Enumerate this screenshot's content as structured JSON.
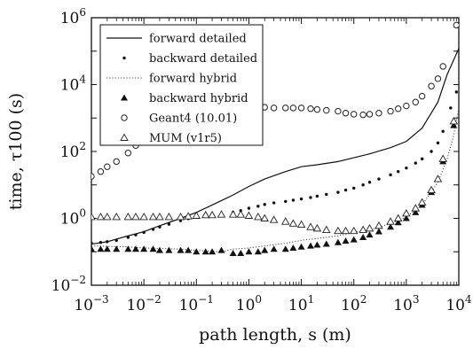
{
  "chart_data": {
    "type": "line",
    "title": "",
    "xlabel": "path length, s (m)",
    "ylabel": "time, τ100 (s)",
    "xscale": "log",
    "yscale": "log",
    "xlim": [
      0.001,
      10000
    ],
    "ylim": [
      0.01,
      1000000
    ],
    "x_ticks": [
      {
        "value": 0.001,
        "base": "10",
        "exp": "−3"
      },
      {
        "value": 0.01,
        "base": "10",
        "exp": "−2"
      },
      {
        "value": 0.1,
        "base": "10",
        "exp": "−1"
      },
      {
        "value": 1,
        "base": "10",
        "exp": "0"
      },
      {
        "value": 10,
        "base": "10",
        "exp": "1"
      },
      {
        "value": 100,
        "base": "10",
        "exp": "2"
      },
      {
        "value": 1000,
        "base": "10",
        "exp": "3"
      },
      {
        "value": 10000,
        "base": "10",
        "exp": "4"
      }
    ],
    "y_ticks": [
      {
        "value": 0.01,
        "base": "10",
        "exp": "−2"
      },
      {
        "value": 1,
        "base": "10",
        "exp": "0"
      },
      {
        "value": 100,
        "base": "10",
        "exp": "2"
      },
      {
        "value": 10000,
        "base": "10",
        "exp": "4"
      },
      {
        "value": 1000000,
        "base": "10",
        "exp": "6"
      }
    ],
    "grid": false,
    "legend_position": "top-left",
    "series": [
      {
        "name": "forward detailed",
        "style": "solid-line",
        "points": [
          [
            0.001,
            0.17
          ],
          [
            0.002,
            0.2
          ],
          [
            0.005,
            0.3
          ],
          [
            0.01,
            0.4
          ],
          [
            0.02,
            0.6
          ],
          [
            0.05,
            1.0
          ],
          [
            0.1,
            1.5
          ],
          [
            0.2,
            2.5
          ],
          [
            0.5,
            5
          ],
          [
            1,
            9
          ],
          [
            2,
            15
          ],
          [
            5,
            25
          ],
          [
            10,
            35
          ],
          [
            20,
            40
          ],
          [
            50,
            50
          ],
          [
            100,
            65
          ],
          [
            200,
            85
          ],
          [
            500,
            130
          ],
          [
            1000,
            200
          ],
          [
            2000,
            500
          ],
          [
            4000,
            3000
          ],
          [
            6000,
            20000
          ],
          [
            10000,
            120000
          ]
        ]
      },
      {
        "name": "backward detailed",
        "style": "dot",
        "points": [
          [
            0.001,
            0.18
          ],
          [
            0.0015,
            0.19
          ],
          [
            0.002,
            0.2
          ],
          [
            0.003,
            0.22
          ],
          [
            0.005,
            0.27
          ],
          [
            0.007,
            0.32
          ],
          [
            0.01,
            0.38
          ],
          [
            0.015,
            0.47
          ],
          [
            0.02,
            0.55
          ],
          [
            0.03,
            0.67
          ],
          [
            0.05,
            0.85
          ],
          [
            0.07,
            0.98
          ],
          [
            0.1,
            1.1
          ],
          [
            0.15,
            1.2
          ],
          [
            0.2,
            1.3
          ],
          [
            0.3,
            1.35
          ],
          [
            0.5,
            1.5
          ],
          [
            0.7,
            1.7
          ],
          [
            1,
            2.0
          ],
          [
            1.5,
            2.3
          ],
          [
            2,
            2.6
          ],
          [
            3,
            2.9
          ],
          [
            5,
            3.2
          ],
          [
            7,
            3.5
          ],
          [
            10,
            3.8
          ],
          [
            15,
            4.2
          ],
          [
            20,
            4.6
          ],
          [
            30,
            5.2
          ],
          [
            50,
            6
          ],
          [
            70,
            7
          ],
          [
            100,
            8
          ],
          [
            150,
            10
          ],
          [
            200,
            12
          ],
          [
            300,
            15
          ],
          [
            500,
            20
          ],
          [
            700,
            25
          ],
          [
            1000,
            32
          ],
          [
            1500,
            45
          ],
          [
            2000,
            60
          ],
          [
            3000,
            100
          ],
          [
            4000,
            180
          ],
          [
            5000,
            400
          ],
          [
            7000,
            2000
          ],
          [
            9000,
            6000
          ]
        ]
      },
      {
        "name": "forward hybrid",
        "style": "dotted-line",
        "points": [
          [
            0.001,
            0.15
          ],
          [
            0.005,
            0.14
          ],
          [
            0.01,
            0.13
          ],
          [
            0.05,
            0.12
          ],
          [
            0.1,
            0.11
          ],
          [
            0.3,
            0.1
          ],
          [
            0.5,
            0.12
          ],
          [
            1,
            0.13
          ],
          [
            2,
            0.15
          ],
          [
            5,
            0.18
          ],
          [
            10,
            0.22
          ],
          [
            20,
            0.25
          ],
          [
            50,
            0.3
          ],
          [
            100,
            0.38
          ],
          [
            200,
            0.45
          ],
          [
            500,
            0.7
          ],
          [
            1000,
            1.1
          ],
          [
            2000,
            2.5
          ],
          [
            4000,
            12
          ],
          [
            6000,
            60
          ],
          [
            8000,
            300
          ],
          [
            10000,
            2000
          ]
        ]
      },
      {
        "name": "backward hybrid",
        "style": "filled-triangle",
        "points": [
          [
            0.001,
            0.12
          ],
          [
            0.0015,
            0.12
          ],
          [
            0.002,
            0.12
          ],
          [
            0.003,
            0.12
          ],
          [
            0.005,
            0.12
          ],
          [
            0.007,
            0.12
          ],
          [
            0.01,
            0.12
          ],
          [
            0.015,
            0.12
          ],
          [
            0.02,
            0.11
          ],
          [
            0.03,
            0.11
          ],
          [
            0.05,
            0.11
          ],
          [
            0.07,
            0.11
          ],
          [
            0.1,
            0.1
          ],
          [
            0.15,
            0.1
          ],
          [
            0.2,
            0.1
          ],
          [
            0.3,
            0.11
          ],
          [
            0.5,
            0.09
          ],
          [
            0.7,
            0.09
          ],
          [
            1,
            0.1
          ],
          [
            1.5,
            0.1
          ],
          [
            2,
            0.11
          ],
          [
            3,
            0.12
          ],
          [
            5,
            0.12
          ],
          [
            7,
            0.13
          ],
          [
            10,
            0.14
          ],
          [
            15,
            0.15
          ],
          [
            20,
            0.16
          ],
          [
            30,
            0.17
          ],
          [
            50,
            0.19
          ],
          [
            70,
            0.21
          ],
          [
            100,
            0.23
          ],
          [
            150,
            0.27
          ],
          [
            200,
            0.32
          ],
          [
            300,
            0.4
          ],
          [
            500,
            0.55
          ],
          [
            700,
            0.75
          ],
          [
            1000,
            1.0
          ],
          [
            1500,
            1.5
          ],
          [
            2000,
            2.5
          ],
          [
            3000,
            6
          ],
          [
            4000,
            15
          ],
          [
            5000,
            50
          ],
          [
            8000,
            600
          ]
        ]
      },
      {
        "name": "Geant4 (10.01)",
        "style": "open-circle",
        "points": [
          [
            0.001,
            18
          ],
          [
            0.0015,
            25
          ],
          [
            0.002,
            35
          ],
          [
            0.003,
            50
          ],
          [
            0.005,
            90
          ],
          [
            0.007,
            150
          ],
          [
            0.01,
            250
          ],
          [
            0.015,
            380
          ],
          [
            0.02,
            520
          ],
          [
            0.03,
            700
          ],
          [
            0.05,
            900
          ],
          [
            0.07,
            1100
          ],
          [
            0.1,
            1300
          ],
          [
            0.15,
            1500
          ],
          [
            0.2,
            1700
          ],
          [
            0.3,
            1800
          ],
          [
            0.5,
            2000
          ],
          [
            0.7,
            2100
          ],
          [
            1,
            2200
          ],
          [
            1.5,
            2200
          ],
          [
            2,
            2100
          ],
          [
            3,
            2000
          ],
          [
            5,
            2000
          ],
          [
            7,
            2000
          ],
          [
            10,
            2000
          ],
          [
            15,
            1900
          ],
          [
            20,
            1800
          ],
          [
            30,
            1700
          ],
          [
            50,
            1600
          ],
          [
            70,
            1400
          ],
          [
            100,
            1300
          ],
          [
            150,
            1250
          ],
          [
            200,
            1300
          ],
          [
            300,
            1400
          ],
          [
            500,
            1600
          ],
          [
            700,
            1900
          ],
          [
            1000,
            2300
          ],
          [
            1500,
            3000
          ],
          [
            2000,
            4500
          ],
          [
            3000,
            9000
          ],
          [
            4000,
            15000
          ],
          [
            5000,
            35000
          ],
          [
            9000,
            600000
          ]
        ]
      },
      {
        "name": "MUM (v1r5)",
        "style": "open-triangle",
        "points": [
          [
            0.001,
            1.1
          ],
          [
            0.0015,
            1.1
          ],
          [
            0.002,
            1.1
          ],
          [
            0.003,
            1.1
          ],
          [
            0.005,
            1.1
          ],
          [
            0.007,
            1.1
          ],
          [
            0.01,
            1.1
          ],
          [
            0.015,
            1.1
          ],
          [
            0.02,
            1.1
          ],
          [
            0.03,
            1.1
          ],
          [
            0.05,
            1.1
          ],
          [
            0.07,
            1.15
          ],
          [
            0.1,
            1.2
          ],
          [
            0.15,
            1.25
          ],
          [
            0.2,
            1.25
          ],
          [
            0.3,
            1.3
          ],
          [
            0.5,
            1.3
          ],
          [
            0.7,
            1.3
          ],
          [
            1,
            1.2
          ],
          [
            1.5,
            1.1
          ],
          [
            2,
            1.0
          ],
          [
            3,
            0.9
          ],
          [
            5,
            0.8
          ],
          [
            7,
            0.7
          ],
          [
            10,
            0.65
          ],
          [
            15,
            0.55
          ],
          [
            20,
            0.5
          ],
          [
            30,
            0.45
          ],
          [
            50,
            0.42
          ],
          [
            70,
            0.42
          ],
          [
            100,
            0.42
          ],
          [
            150,
            0.45
          ],
          [
            200,
            0.5
          ],
          [
            300,
            0.6
          ],
          [
            500,
            0.8
          ],
          [
            700,
            1.0
          ],
          [
            1000,
            1.4
          ],
          [
            1500,
            2.0
          ],
          [
            2000,
            3.0
          ],
          [
            3000,
            7
          ],
          [
            4000,
            15
          ],
          [
            5000,
            60
          ],
          [
            8000,
            800
          ]
        ]
      }
    ]
  }
}
